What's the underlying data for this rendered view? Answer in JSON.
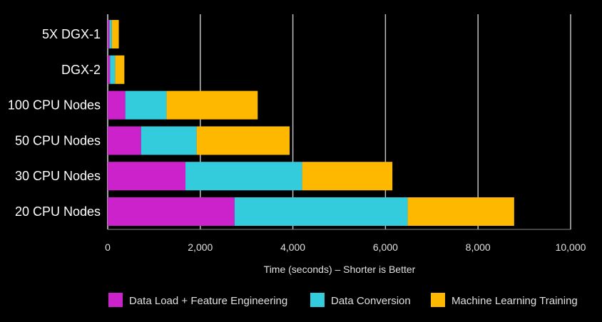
{
  "chart_data": {
    "type": "bar",
    "orientation": "horizontal",
    "stacked": true,
    "title": "",
    "xlabel": "Time (seconds) – Shorter is Better",
    "ylabel": "",
    "xlim": [
      0,
      10000
    ],
    "xticks": [
      0,
      2000,
      4000,
      6000,
      8000,
      10000
    ],
    "xtick_labels": [
      "0",
      "2,000",
      "4,000",
      "6,000",
      "8,000",
      "10,000"
    ],
    "grid": true,
    "legend_position": "bottom",
    "categories": [
      "5X DGX-1",
      "DGX-2",
      "100 CPU Nodes",
      "50 CPU Nodes",
      "30 CPU Nodes",
      "20 CPU Nodes"
    ],
    "series": [
      {
        "name": "Data Load + Feature Engineering",
        "color": "#cc22cc",
        "values": [
          40,
          50,
          380,
          720,
          1680,
          2740
        ]
      },
      {
        "name": "Data Conversion",
        "color": "#33ccdd",
        "values": [
          50,
          110,
          890,
          1200,
          2520,
          3740
        ]
      },
      {
        "name": "Machine Learning Training",
        "color": "#ffb800",
        "values": [
          150,
          200,
          1970,
          2010,
          1950,
          2300
        ]
      }
    ]
  },
  "colors": {
    "background": "#000000",
    "gridline": "#bfbfbf",
    "text": "#e0e0e0"
  }
}
